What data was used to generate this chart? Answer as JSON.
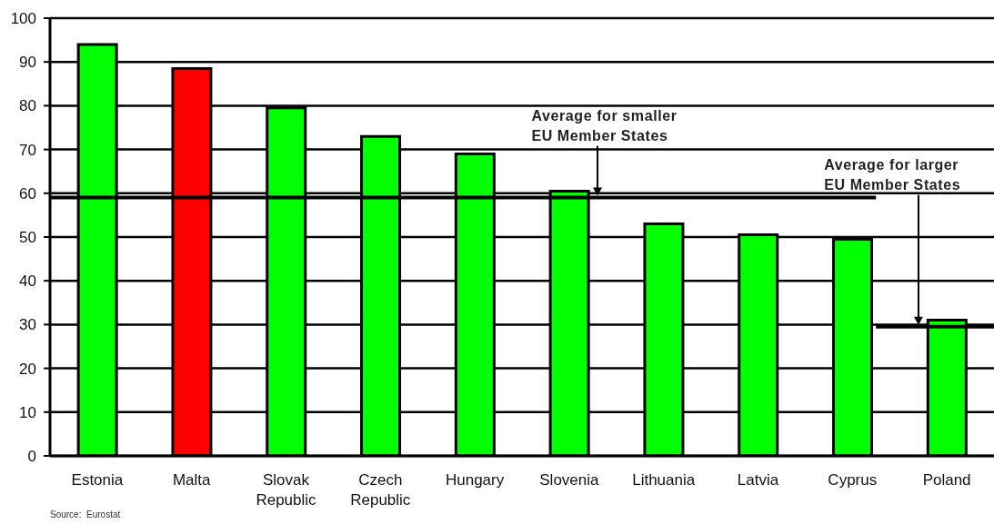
{
  "chart_data": {
    "type": "bar",
    "categories": [
      "Estonia",
      "Malta",
      "Slovak Republic",
      "Czech Republic",
      "Hungary",
      "Slovenia",
      "Lithuania",
      "Latvia",
      "Cyprus",
      "Poland"
    ],
    "values": [
      94,
      88.5,
      79.5,
      73,
      69,
      60.5,
      53,
      50.5,
      49.5,
      31
    ],
    "colors": [
      "#00ff00",
      "#ff0000",
      "#00ff00",
      "#00ff00",
      "#00ff00",
      "#00ff00",
      "#00ff00",
      "#00ff00",
      "#00ff00",
      "#00ff00"
    ],
    "ylim": [
      0,
      100
    ],
    "yticks": [
      0,
      10,
      20,
      30,
      40,
      50,
      60,
      70,
      80,
      90,
      100
    ],
    "grid": "y",
    "ref_lines": [
      {
        "axis": "y",
        "value": 59,
        "label": "Average for smaller\nEU Member States",
        "color": "#000000"
      },
      {
        "axis": "y",
        "value": 29.5,
        "label": "Average for larger\nEU Member States",
        "color": "#000000"
      }
    ],
    "annotations": [
      "Source:  Eurostat"
    ]
  }
}
